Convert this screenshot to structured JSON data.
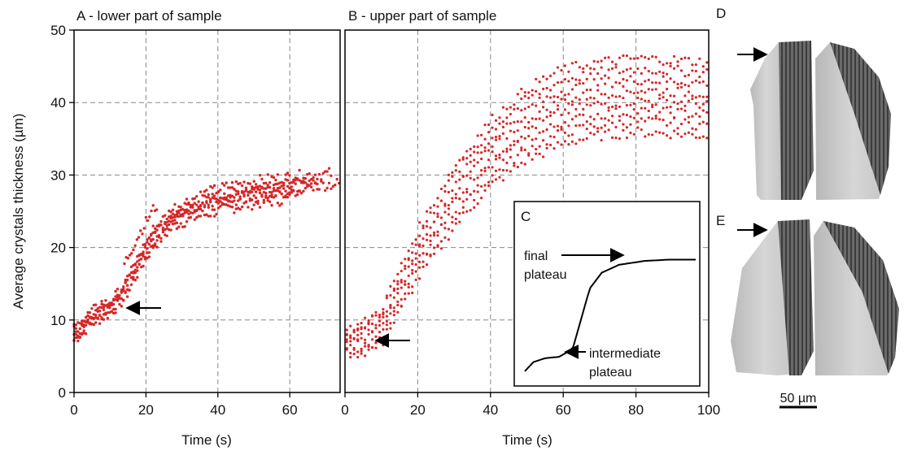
{
  "figure": {
    "panel_a_title": "A - lower part of sample",
    "panel_b_title": "B - upper part of sample",
    "panel_c_label": "C",
    "panel_d_label": "D",
    "panel_e_label": "E",
    "inset_label_final_1": "final",
    "inset_label_final_2": "plateau",
    "inset_label_intermediate_1": "intermediate",
    "inset_label_intermediate_2": "plateau",
    "scale_bar_label": "50 µm",
    "icons": [
      "arrow-icon",
      "crystal-render-image"
    ]
  },
  "chart_data": [
    {
      "type": "scatter",
      "panel": "A",
      "title": "A - lower part of sample",
      "xlabel": "Time (s)",
      "ylabel": "Average crystals thickness (µm)",
      "xlim": [
        0,
        74
      ],
      "ylim": [
        0,
        50
      ],
      "xticks": [
        0,
        20,
        40,
        60
      ],
      "yticks": [
        0,
        10,
        20,
        30,
        40,
        50
      ],
      "grid": true,
      "color": "#d62728",
      "annotation_arrow_at": [
        13,
        11.7
      ],
      "curve_shape": [
        [
          0,
          8
        ],
        [
          5,
          10.5
        ],
        [
          10,
          12
        ],
        [
          14,
          14
        ],
        [
          18,
          18
        ],
        [
          22,
          21.5
        ],
        [
          28,
          24.5
        ],
        [
          35,
          26
        ],
        [
          42,
          27
        ],
        [
          50,
          27.8
        ],
        [
          58,
          28.3
        ],
        [
          65,
          28.7
        ],
        [
          74,
          29
        ]
      ],
      "series_endpoints": [
        {
          "x_end": 60,
          "y_end": 27
        },
        {
          "x_end": 64,
          "y_end": 28
        },
        {
          "x_end": 68,
          "y_end": 29
        },
        {
          "x_end": 72,
          "y_end": 30
        },
        {
          "x_end": 74,
          "y_end": 28.5
        }
      ]
    },
    {
      "type": "scatter",
      "panel": "B",
      "title": "B - upper part of sample",
      "xlabel": "Time (s)",
      "xlim": [
        0,
        100
      ],
      "ylim": [
        0,
        50
      ],
      "xticks": [
        0,
        20,
        40,
        60,
        80,
        100
      ],
      "grid": true,
      "color": "#d62728",
      "annotation_arrow_at": [
        9,
        7.5
      ],
      "curve_shape": [
        [
          0,
          7
        ],
        [
          5,
          7.5
        ],
        [
          10,
          9
        ],
        [
          15,
          14
        ],
        [
          20,
          19
        ],
        [
          30,
          27
        ],
        [
          40,
          33
        ],
        [
          50,
          37
        ],
        [
          60,
          39.5
        ],
        [
          70,
          40.5
        ],
        [
          80,
          41
        ],
        [
          90,
          40.8
        ],
        [
          100,
          40.5
        ]
      ],
      "series_end_values": [
        37,
        38,
        39,
        40,
        41,
        42,
        43,
        44
      ]
    },
    {
      "type": "line",
      "panel": "C",
      "title": "C",
      "description_curve": [
        [
          0,
          0.05
        ],
        [
          0.05,
          0.12
        ],
        [
          0.12,
          0.15
        ],
        [
          0.2,
          0.16
        ],
        [
          0.28,
          0.22
        ],
        [
          0.33,
          0.45
        ],
        [
          0.38,
          0.68
        ],
        [
          0.45,
          0.8
        ],
        [
          0.55,
          0.86
        ],
        [
          0.7,
          0.89
        ],
        [
          0.85,
          0.9
        ],
        [
          1.0,
          0.9
        ]
      ],
      "annotations": [
        "final plateau",
        "intermediate plateau"
      ]
    }
  ]
}
